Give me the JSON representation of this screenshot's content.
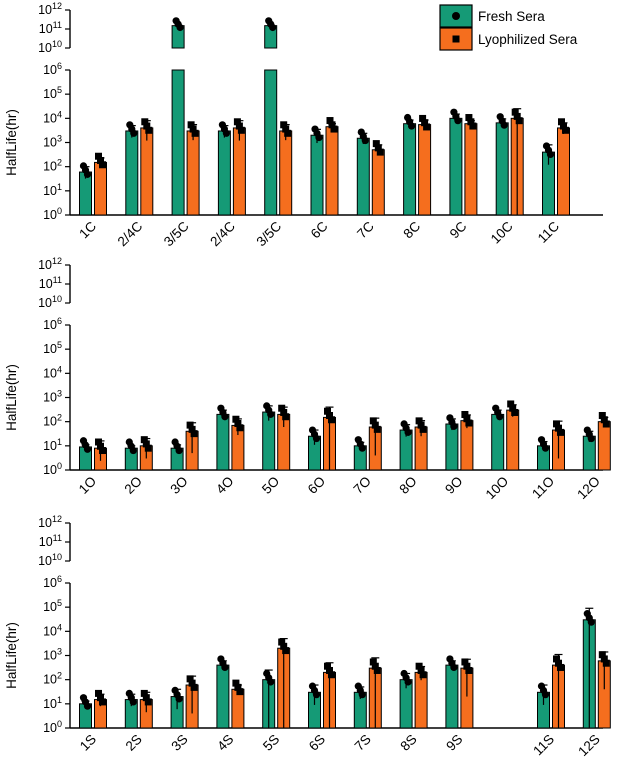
{
  "chart_data": [
    {
      "type": "bar",
      "ylabel": "HalfLife(hr)",
      "yscale": "log",
      "ylim": [
        1,
        1000000000000
      ],
      "axis_break": [
        1000000,
        10000000000
      ],
      "ytick_labels": [
        "10^0",
        "10^1",
        "10^2",
        "10^3",
        "10^4",
        "10^5",
        "10^6",
        "10^10",
        "10^11",
        "10^12"
      ],
      "categories": [
        "1C",
        "2/4C",
        "3/5C",
        "2/4C",
        "3/5C",
        "6C",
        "7C",
        "8C",
        "9C",
        "10C",
        "11C"
      ],
      "series": [
        {
          "name": "Fresh Sera",
          "values": [
            60,
            3000,
            150000000000,
            3000,
            150000000000,
            2000,
            1500,
            6000,
            10000,
            6500,
            400
          ],
          "errors": [
            40,
            2000,
            0,
            2000,
            0,
            1500,
            900,
            2500,
            5000,
            3000,
            400
          ]
        },
        {
          "name": "Lyophilized Sera",
          "values": [
            150,
            4000,
            3000,
            4000,
            3000,
            4500,
            500,
            5500,
            6000,
            10000,
            4000
          ],
          "errors": [
            80,
            4000,
            2500,
            4000,
            2500,
            1500,
            300,
            3000,
            2000,
            15000,
            2500
          ]
        }
      ],
      "legend_position": "top-right"
    },
    {
      "type": "bar",
      "ylabel": "HalfLife(hr)",
      "yscale": "log",
      "ylim": [
        1,
        1000000000000
      ],
      "axis_break": [
        1000000,
        10000000000
      ],
      "ytick_labels": [
        "10^0",
        "10^1",
        "10^2",
        "10^3",
        "10^4",
        "10^5",
        "10^6",
        "10^10",
        "10^11",
        "10^12"
      ],
      "categories": [
        "1O",
        "2O",
        "3O",
        "4O",
        "5O",
        "6O",
        "7O",
        "8O",
        "9O",
        "10O",
        "11O",
        "12O"
      ],
      "series": [
        {
          "name": "Fresh Sera",
          "values": [
            9,
            8,
            8,
            200,
            250,
            25,
            10,
            45,
            80,
            200,
            10,
            25
          ],
          "errors": [
            2,
            2,
            3,
            100,
            200,
            20,
            4,
            30,
            50,
            100,
            5,
            15
          ]
        },
        {
          "name": "Lyophilized Sera",
          "values": [
            8,
            10,
            40,
            70,
            200,
            150,
            60,
            60,
            110,
            300,
            45,
            100
          ],
          "errors": [
            8,
            10,
            50,
            60,
            200,
            250,
            80,
            50,
            80,
            200,
            60,
            50
          ]
        }
      ]
    },
    {
      "type": "bar",
      "ylabel": "HalfLife(hr)",
      "yscale": "log",
      "ylim": [
        1,
        1000000000000
      ],
      "axis_break": [
        1000000,
        10000000000
      ],
      "ytick_labels": [
        "10^0",
        "10^1",
        "10^2",
        "10^3",
        "10^4",
        "10^5",
        "10^6",
        "10^10",
        "10^11",
        "10^12"
      ],
      "categories": [
        "1S",
        "2S",
        "3S",
        "4S",
        "5S",
        "6S",
        "7S",
        "8S",
        "9S",
        "",
        "11S",
        "12S"
      ],
      "series": [
        {
          "name": "Fresh Sera",
          "values": [
            10,
            15,
            20,
            400,
            100,
            30,
            30,
            100,
            400,
            null,
            30,
            30000
          ],
          "errors": [
            3,
            10,
            20,
            200,
            150,
            30,
            20,
            80,
            200,
            null,
            30,
            60000
          ]
        },
        {
          "name": "Lyophilized Sera",
          "values": [
            15,
            15,
            60,
            40,
            2000,
            200,
            300,
            200,
            300,
            null,
            400,
            600
          ],
          "errors": [
            10,
            15,
            80,
            20,
            3000,
            300,
            500,
            150,
            400,
            null,
            700,
            800
          ]
        }
      ]
    }
  ],
  "legend": {
    "fresh_label": "Fresh Sera",
    "lyo_label": "Lyophilized Sera",
    "fresh_color": "#159a76",
    "lyo_color": "#f56e1e"
  }
}
